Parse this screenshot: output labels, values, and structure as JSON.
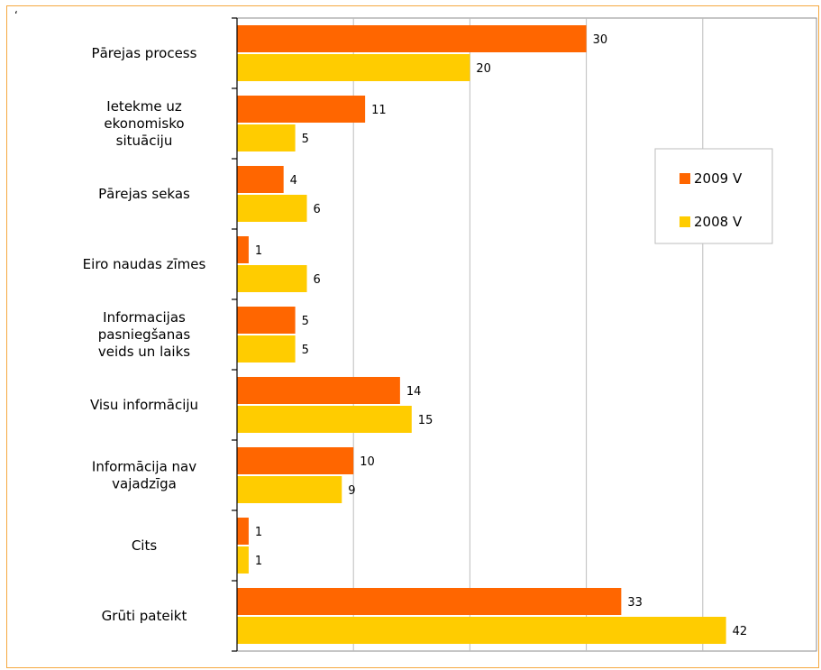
{
  "corner_mark": "‘",
  "chart_data": {
    "type": "bar",
    "orientation": "horizontal",
    "categories": [
      [
        "Pārejas process"
      ],
      [
        "Ietekme uz",
        "ekonomisko",
        "situāciju"
      ],
      [
        "Pārejas sekas"
      ],
      [
        "Eiro naudas zīmes"
      ],
      [
        "Informacijas",
        "pasniegšanas",
        "veids un laiks"
      ],
      [
        "Visu informāciju"
      ],
      [
        "Informācija nav",
        "vajadzīga"
      ],
      [
        "Cits"
      ],
      [
        "Grūti pateikt"
      ]
    ],
    "series": [
      {
        "name": "2009 V",
        "color": "#ff6600",
        "values": [
          30,
          11,
          4,
          1,
          5,
          14,
          10,
          1,
          33
        ]
      },
      {
        "name": "2008 V",
        "color": "#ffcc00",
        "values": [
          20,
          5,
          6,
          6,
          5,
          15,
          9,
          1,
          42
        ]
      }
    ],
    "xlim": [
      0,
      50
    ],
    "grid": true,
    "legend_position": "right"
  }
}
